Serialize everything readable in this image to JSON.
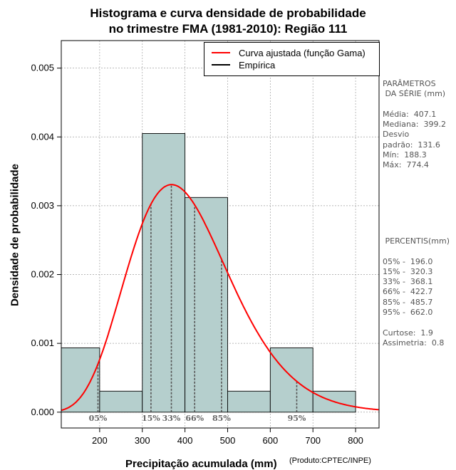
{
  "title_line1": "Histograma e curva densidade de probabilidade",
  "title_line2": "no trimestre FMA (1981-2010): Região 111",
  "legend": {
    "fit_label": "Curva ajustada (função Gama)",
    "fit_color": "#ff0000",
    "empirical_label": "Empírica",
    "empirical_color": "#000000"
  },
  "parametros": {
    "header1": "PARÂMETROS",
    "header2": " DA SÉRIE (mm)",
    "media": "Média:  407.1",
    "mediana": "Mediana:  399.2",
    "desvio": "Desvio",
    "padrao": "padrão:  131.6",
    "min": "Mín:  188.3",
    "max": "Máx:  774.4"
  },
  "percentis": {
    "header": " PERCENTIS(mm)",
    "p05": "05% -  196.0",
    "p15": "15% -  320.3",
    "p33": "33% -  368.1",
    "p66": "66% -  422.7",
    "p85": "85% -  485.7",
    "p95": "95% -  662.0",
    "curtose": "Curtose:  1.9",
    "assimetria": "Assimetria:  0.8"
  },
  "credit": "(Produto:CPTEC/INPE)",
  "chart_data": {
    "type": "bar",
    "title": "Histograma e curva densidade de probabilidade no trimestre FMA (1981-2010): Região 111",
    "xlabel": "Precipitação acumulada (mm)",
    "ylabel": "Densidade de probabilidade",
    "xlim": [
      110,
      855
    ],
    "ylim": [
      -0.00023,
      0.0054
    ],
    "xticks": [
      200,
      300,
      400,
      500,
      600,
      700,
      800
    ],
    "yticks": [
      0.0,
      0.001,
      0.002,
      0.003,
      0.004,
      0.005
    ],
    "ytick_labels": [
      "0.000",
      "0.001",
      "0.002",
      "0.003",
      "0.004",
      "0.005"
    ],
    "grid": true,
    "bar_color": "#b5cfcd",
    "bins": [
      {
        "from": 100,
        "to": 200,
        "density": 0.000935
      },
      {
        "from": 200,
        "to": 300,
        "density": 0.000305
      },
      {
        "from": 300,
        "to": 400,
        "density": 0.00405
      },
      {
        "from": 400,
        "to": 500,
        "density": 0.00312
      },
      {
        "from": 500,
        "to": 600,
        "density": 0.000305
      },
      {
        "from": 600,
        "to": 700,
        "density": 0.000935
      },
      {
        "from": 700,
        "to": 800,
        "density": 0.000305
      }
    ],
    "gamma_fit": {
      "shape": 10.5,
      "scale": 38.8
    },
    "percentile_markers": [
      {
        "label": "05%",
        "value": 196.0
      },
      {
        "label": "15%",
        "value": 320.3
      },
      {
        "label": "33%",
        "value": 368.1
      },
      {
        "label": "66%",
        "value": 422.7
      },
      {
        "label": "85%",
        "value": 485.7
      },
      {
        "label": "95%",
        "value": 662.0
      }
    ],
    "legend": [
      "Curva ajustada (função Gama)",
      "Empírica"
    ]
  }
}
